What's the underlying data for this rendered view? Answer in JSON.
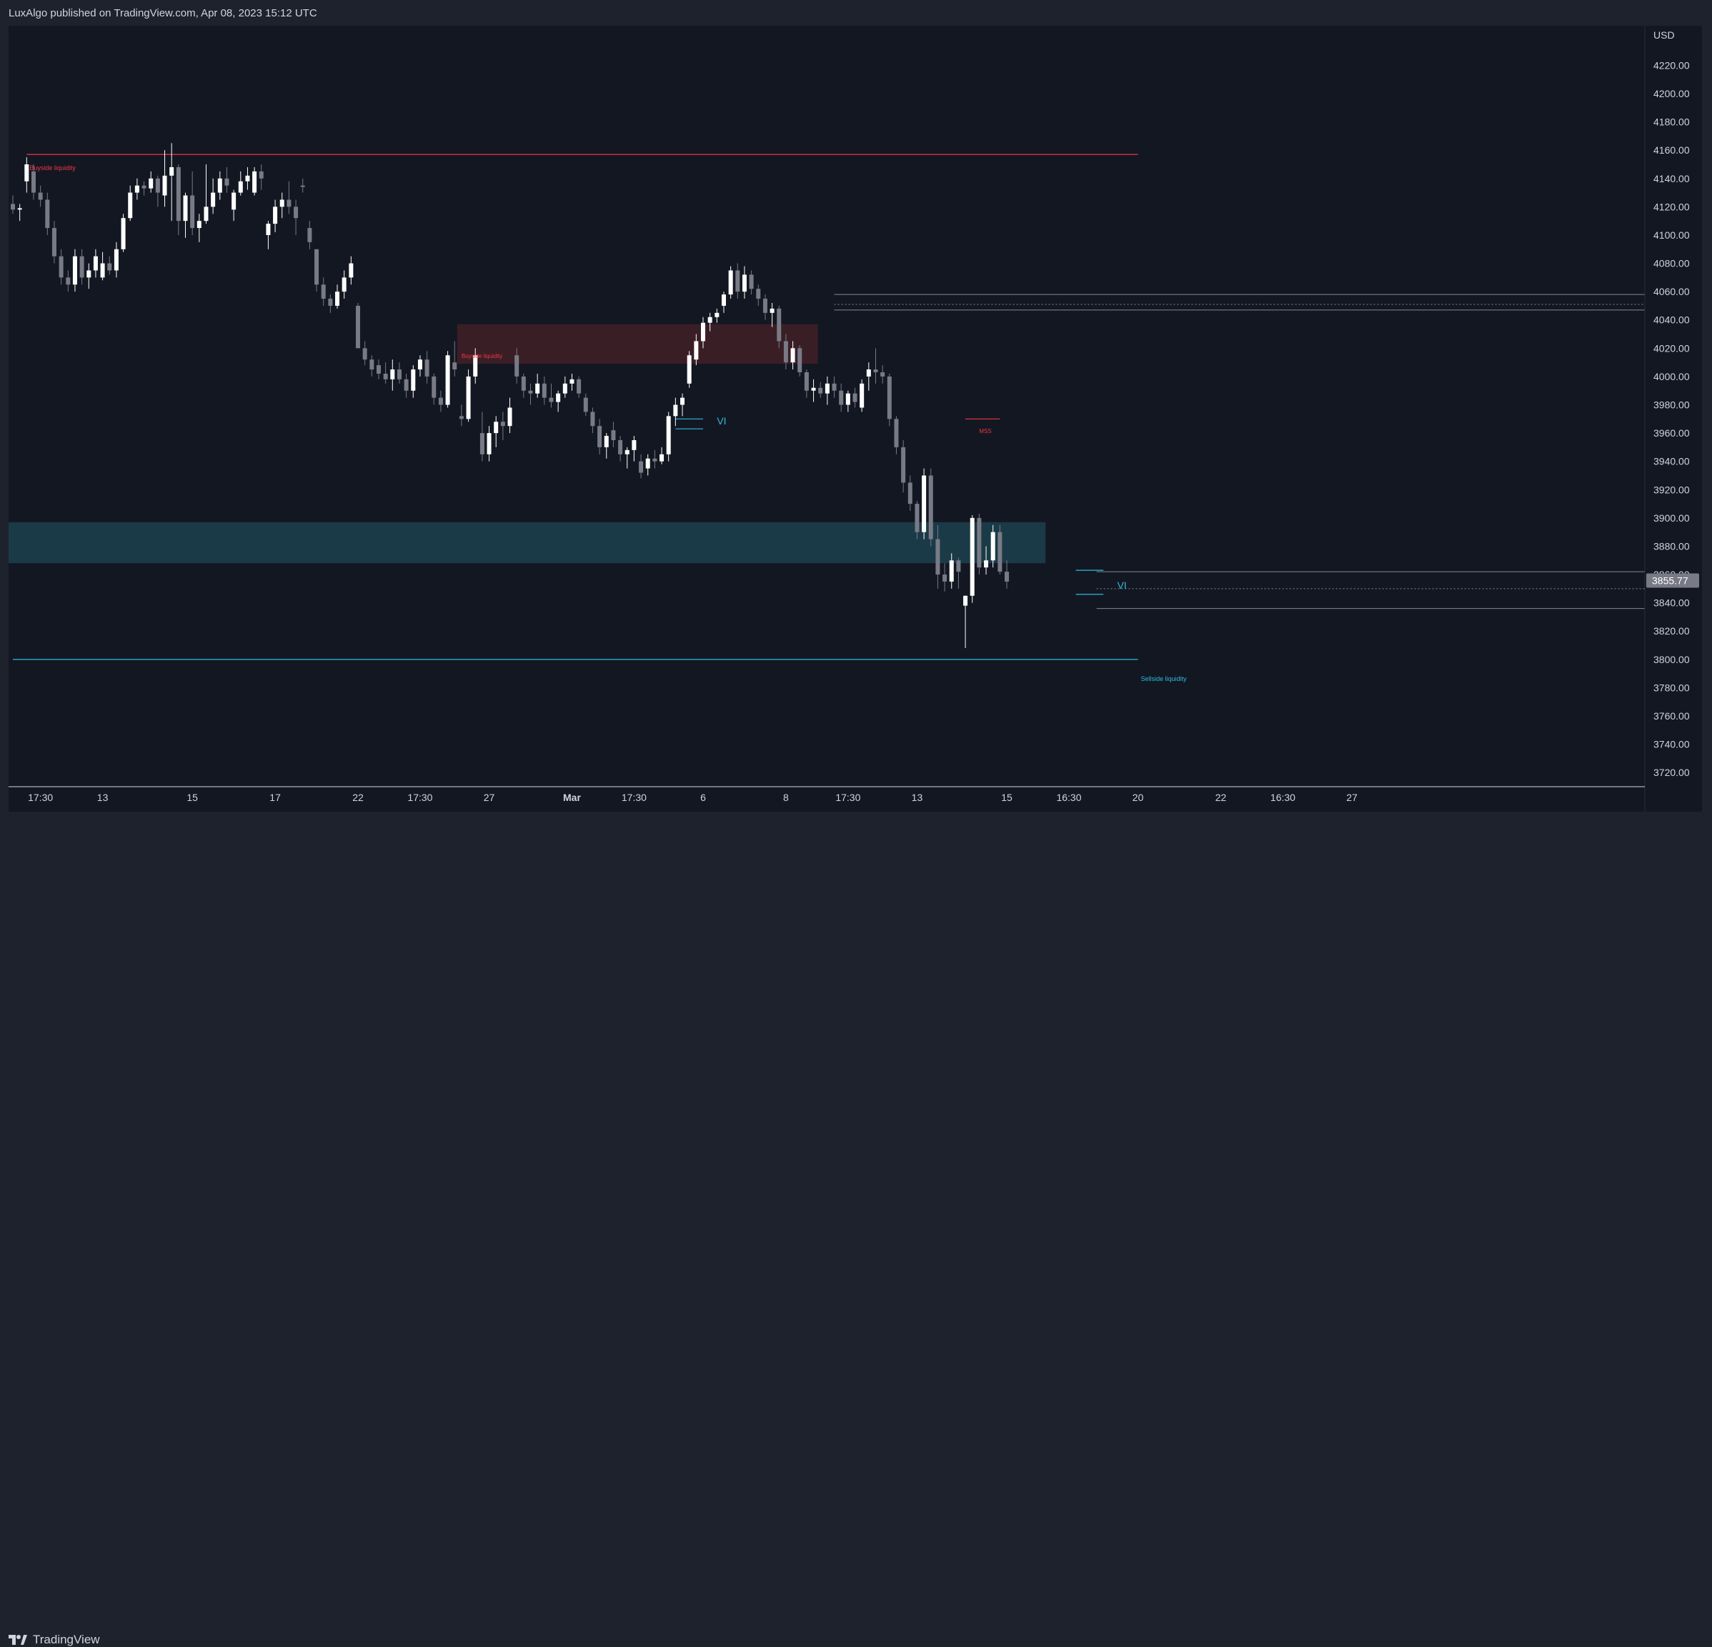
{
  "header": {
    "text": "LuxAlgo published on TradingView.com, Apr 08, 2023 15:12 UTC"
  },
  "footer": {
    "logo_text": "TradingView",
    "logo_icon": "tradingview-logo-icon"
  },
  "colors": {
    "background": "#131722",
    "frame": "#1e222d",
    "bull": "#ffffff",
    "bear": "#787b86",
    "buyside": "#f23645",
    "sellside": "#2ebcdc",
    "axis_text": "#d1d4dc",
    "last_price_bg": "#787b86"
  },
  "chart_data": {
    "type": "candlestick",
    "currency": "USD",
    "ylim": [
      3710,
      4248
    ],
    "y_ticks": [
      4220,
      4200,
      4180,
      4160,
      4140,
      4120,
      4100,
      4080,
      4060,
      4040,
      4020,
      4000,
      3980,
      3960,
      3940,
      3920,
      3900,
      3880,
      3860,
      3840,
      3820,
      3800,
      3780,
      3760,
      3740,
      3720
    ],
    "y_tick_labels": [
      "4220.00",
      "4200.00",
      "4180.00",
      "4160.00",
      "4140.00",
      "4120.00",
      "4100.00",
      "4080.00",
      "4060.00",
      "4040.00",
      "4020.00",
      "4000.00",
      "3980.00",
      "3960.00",
      "3940.00",
      "3920.00",
      "3900.00",
      "3880.00",
      "3860.00",
      "3840.00",
      "3820.00",
      "3800.00",
      "3780.00",
      "3760.00",
      "3740.00",
      "3720.00"
    ],
    "x_ticks": [
      {
        "label": "17:30",
        "bar": 4
      },
      {
        "label": "13",
        "bar": 13
      },
      {
        "label": "15",
        "bar": 26
      },
      {
        "label": "17",
        "bar": 38
      },
      {
        "label": "22",
        "bar": 50
      },
      {
        "label": "17:30",
        "bar": 59
      },
      {
        "label": "27",
        "bar": 69
      },
      {
        "label": "Mar",
        "bar": 81
      },
      {
        "label": "17:30",
        "bar": 90
      },
      {
        "label": "6",
        "bar": 100
      },
      {
        "label": "8",
        "bar": 112
      },
      {
        "label": "17:30",
        "bar": 121
      },
      {
        "label": "13",
        "bar": 131
      },
      {
        "label": "15",
        "bar": 144
      },
      {
        "label": "16:30",
        "bar": 153
      },
      {
        "label": "20",
        "bar": 163
      },
      {
        "label": "22",
        "bar": 175
      },
      {
        "label": "16:30",
        "bar": 184
      },
      {
        "label": "27",
        "bar": 194
      }
    ],
    "candles": [
      [
        4122,
        4128,
        4115,
        4118
      ],
      [
        4118,
        4122,
        4110,
        4119
      ],
      [
        4138,
        4155,
        4130,
        4150
      ],
      [
        4145,
        4150,
        4125,
        4130
      ],
      [
        4130,
        4135,
        4120,
        4125
      ],
      [
        4125,
        4130,
        4100,
        4105
      ],
      [
        4105,
        4110,
        4080,
        4085
      ],
      [
        4085,
        4090,
        4065,
        4070
      ],
      [
        4070,
        4075,
        4060,
        4065
      ],
      [
        4065,
        4090,
        4060,
        4085
      ],
      [
        4085,
        4090,
        4065,
        4070
      ],
      [
        4070,
        4080,
        4062,
        4075
      ],
      [
        4075,
        4090,
        4070,
        4085
      ],
      [
        4070,
        4088,
        4068,
        4080
      ],
      [
        4080,
        4085,
        4072,
        4075
      ],
      [
        4075,
        4095,
        4070,
        4090
      ],
      [
        4090,
        4115,
        4088,
        4112
      ],
      [
        4112,
        4135,
        4110,
        4130
      ],
      [
        4130,
        4140,
        4125,
        4135
      ],
      [
        4135,
        4138,
        4128,
        4133
      ],
      [
        4133,
        4145,
        4130,
        4140
      ],
      [
        4140,
        4142,
        4120,
        4130
      ],
      [
        4128,
        4160,
        4120,
        4142
      ],
      [
        4142,
        4165,
        4110,
        4148
      ],
      [
        4148,
        4150,
        4100,
        4110
      ],
      [
        4110,
        4130,
        4098,
        4128
      ],
      [
        4128,
        4145,
        4100,
        4105
      ],
      [
        4105,
        4115,
        4095,
        4110
      ],
      [
        4110,
        4150,
        4108,
        4120
      ],
      [
        4120,
        4140,
        4115,
        4130
      ],
      [
        4130,
        4145,
        4125,
        4140
      ],
      [
        4140,
        4148,
        4130,
        4135
      ],
      [
        4118,
        4132,
        4110,
        4130
      ],
      [
        4130,
        4145,
        4128,
        4138
      ],
      [
        4138,
        4148,
        4132,
        4142
      ],
      [
        4130,
        4148,
        4128,
        4145
      ],
      [
        4145,
        4150,
        4132,
        4140
      ],
      [
        4100,
        4110,
        4090,
        4108
      ],
      [
        4108,
        4125,
        4102,
        4120
      ],
      [
        4120,
        4130,
        4112,
        4125
      ],
      [
        4125,
        4138,
        4115,
        4120
      ],
      [
        4120,
        4125,
        4100,
        4112
      ],
      [
        4135,
        4140,
        4130,
        4134
      ],
      [
        4105,
        4110,
        4090,
        4095
      ],
      [
        4090,
        4085,
        4060,
        4065
      ],
      [
        4065,
        4070,
        4050,
        4055
      ],
      [
        4055,
        4058,
        4045,
        4050
      ],
      [
        4050,
        4065,
        4048,
        4060
      ],
      [
        4060,
        4075,
        4055,
        4070
      ],
      [
        4070,
        4085,
        4065,
        4080
      ],
      [
        4050,
        4052,
        4025,
        4020
      ],
      [
        4020,
        4025,
        4008,
        4012
      ],
      [
        4012,
        4015,
        4000,
        4005
      ],
      [
        4008,
        4012,
        3998,
        4002
      ],
      [
        4002,
        4010,
        3995,
        3998
      ],
      [
        3998,
        4012,
        3990,
        4005
      ],
      [
        4005,
        4010,
        3995,
        3998
      ],
      [
        3998,
        4002,
        3985,
        3990
      ],
      [
        3990,
        4008,
        3985,
        4005
      ],
      [
        4005,
        4015,
        4000,
        4012
      ],
      [
        4012,
        4018,
        3995,
        4000
      ],
      [
        4000,
        4002,
        3980,
        3985
      ],
      [
        3985,
        3990,
        3975,
        3980
      ],
      [
        3980,
        4018,
        3978,
        4015
      ],
      [
        4010,
        4025,
        4000,
        4005
      ],
      [
        3972,
        3980,
        3965,
        3970
      ],
      [
        3970,
        4005,
        3968,
        4000
      ],
      [
        4000,
        4020,
        3995,
        4015
      ],
      [
        3960,
        3975,
        3940,
        3945
      ],
      [
        3945,
        3965,
        3940,
        3960
      ],
      [
        3960,
        3972,
        3950,
        3968
      ],
      [
        3968,
        3975,
        3955,
        3965
      ],
      [
        3965,
        3985,
        3960,
        3978
      ],
      [
        4015,
        4020,
        3995,
        4000
      ],
      [
        4000,
        4002,
        3985,
        3990
      ],
      [
        3990,
        3995,
        3980,
        3988
      ],
      [
        3988,
        4002,
        3985,
        3995
      ],
      [
        3995,
        4000,
        3980,
        3985
      ],
      [
        3985,
        3995,
        3978,
        3982
      ],
      [
        3982,
        3990,
        3975,
        3988
      ],
      [
        3988,
        4000,
        3985,
        3995
      ],
      [
        3995,
        4002,
        3990,
        3998
      ],
      [
        3998,
        4000,
        3985,
        3988
      ],
      [
        3985,
        3988,
        3972,
        3975
      ],
      [
        3975,
        3978,
        3960,
        3965
      ],
      [
        3965,
        3970,
        3945,
        3950
      ],
      [
        3950,
        3960,
        3942,
        3958
      ],
      [
        3962,
        3968,
        3950,
        3955
      ],
      [
        3955,
        3958,
        3940,
        3945
      ],
      [
        3945,
        3950,
        3935,
        3948
      ],
      [
        3948,
        3958,
        3940,
        3955
      ],
      [
        3940,
        3945,
        3928,
        3932
      ],
      [
        3935,
        3945,
        3930,
        3942
      ],
      [
        3942,
        3948,
        3935,
        3940
      ],
      [
        3940,
        3950,
        3938,
        3945
      ],
      [
        3945,
        3975,
        3940,
        3972
      ],
      [
        3972,
        3985,
        3965,
        3980
      ],
      [
        3980,
        3988,
        3972,
        3985
      ],
      [
        3995,
        4018,
        3992,
        4015
      ],
      [
        4012,
        4030,
        4008,
        4025
      ],
      [
        4025,
        4042,
        4020,
        4038
      ],
      [
        4038,
        4045,
        4032,
        4042
      ],
      [
        4042,
        4048,
        4038,
        4045
      ],
      [
        4050,
        4060,
        4045,
        4058
      ],
      [
        4058,
        4078,
        4055,
        4075
      ],
      [
        4075,
        4080,
        4055,
        4060
      ],
      [
        4060,
        4078,
        4055,
        4072
      ],
      [
        4072,
        4075,
        4058,
        4062
      ],
      [
        4062,
        4065,
        4050,
        4055
      ],
      [
        4055,
        4058,
        4040,
        4045
      ],
      [
        4045,
        4052,
        4035,
        4048
      ],
      [
        4048,
        4050,
        4020,
        4025
      ],
      [
        4025,
        4030,
        4005,
        4010
      ],
      [
        4010,
        4025,
        4005,
        4020
      ],
      [
        4020,
        4022,
        4000,
        4003
      ],
      [
        4003,
        4005,
        3985,
        3990
      ],
      [
        3990,
        3998,
        3982,
        3992
      ],
      [
        3992,
        3996,
        3985,
        3988
      ],
      [
        3988,
        4000,
        3980,
        3995
      ],
      [
        3995,
        4000,
        3985,
        3990
      ],
      [
        3990,
        3995,
        3975,
        3980
      ],
      [
        3980,
        3990,
        3975,
        3988
      ],
      [
        3988,
        3992,
        3978,
        3982
      ],
      [
        3978,
        3998,
        3975,
        3995
      ],
      [
        4000,
        4010,
        3990,
        4005
      ],
      [
        4005,
        4020,
        3995,
        4003
      ],
      [
        4003,
        4008,
        3995,
        4000
      ],
      [
        4000,
        4002,
        3965,
        3970
      ],
      [
        3970,
        3972,
        3945,
        3950
      ],
      [
        3950,
        3955,
        3918,
        3925
      ],
      [
        3925,
        3930,
        3905,
        3910
      ],
      [
        3910,
        3912,
        3885,
        3890
      ],
      [
        3890,
        3935,
        3885,
        3930
      ],
      [
        3930,
        3935,
        3880,
        3885
      ],
      [
        3885,
        3895,
        3850,
        3860
      ],
      [
        3860,
        3868,
        3848,
        3855
      ],
      [
        3855,
        3875,
        3850,
        3870
      ],
      [
        3870,
        3872,
        3850,
        3862
      ],
      [
        3838,
        3845,
        3808,
        3845
      ],
      [
        3845,
        3902,
        3840,
        3900
      ],
      [
        3900,
        3903,
        3860,
        3865
      ],
      [
        3865,
        3880,
        3860,
        3870
      ],
      [
        3870,
        3895,
        3865,
        3890
      ],
      [
        3890,
        3895,
        3860,
        3862
      ],
      [
        3862,
        3870,
        3850,
        3855
      ]
    ],
    "zones": [
      {
        "name": "Sellside liquidity zone",
        "from_bar": 0,
        "to_bar": 149,
        "top": 3897,
        "bottom": 3868,
        "color": "#1b3a47"
      },
      {
        "name": "Buyside liquidity zone",
        "from_bar": 65,
        "to_bar": 116,
        "top": 4037,
        "bottom": 4009,
        "color": "#3a1e26"
      }
    ],
    "levels": [
      {
        "name": "Buyside liquidity",
        "price": 4157,
        "from_bar": 2,
        "to_bar": 163,
        "color": "#f23645",
        "label": "Buyside liquidity",
        "label_bar": 2
      },
      {
        "name": "Sellside liquidity",
        "price": 3800,
        "from_bar": 0,
        "to_bar": 163,
        "color": "#2ebcdc",
        "label": "Sellside liquidity",
        "label_bar": 163
      }
    ],
    "annotations": [
      {
        "text": "Buyside liquidity",
        "bar": 65,
        "price": 4013,
        "color": "#f23645"
      },
      {
        "text": "VI",
        "bar": 102,
        "price": 3966,
        "color": "#2ebcdc"
      },
      {
        "text": "MSS",
        "bar": 140,
        "price": 3960,
        "color": "#f23645"
      },
      {
        "text": "VI",
        "bar": 160,
        "price": 3850,
        "color": "#2ebcdc"
      }
    ],
    "vi_lines": [
      {
        "from_bar": 96,
        "to_bar": 100,
        "price": 3970,
        "color": "#2ebcdc"
      },
      {
        "from_bar": 96,
        "to_bar": 100,
        "price": 3963,
        "color": "#2ebcdc"
      },
      {
        "from_bar": 154,
        "to_bar": 158,
        "price": 3863,
        "color": "#2ebcdc"
      },
      {
        "from_bar": 154,
        "to_bar": 158,
        "price": 3846,
        "color": "#2ebcdc"
      }
    ],
    "mss_line": {
      "from_bar": 138,
      "to_bar": 143,
      "price": 3970,
      "color": "#f23645"
    },
    "box_levels": [
      {
        "price": 4058,
        "from_bar": 119,
        "color": "#868993"
      },
      {
        "price": 4051,
        "from_bar": 119,
        "color": "#868993",
        "dashed": true
      },
      {
        "price": 4047,
        "from_bar": 119,
        "color": "#868993"
      },
      {
        "price": 3862,
        "from_bar": 157,
        "color": "#868993"
      },
      {
        "price": 3850,
        "from_bar": 157,
        "color": "#868993",
        "dashed": true
      },
      {
        "price": 3836,
        "from_bar": 157,
        "color": "#868993"
      }
    ],
    "last_price": {
      "value": 3855.77,
      "label": "3855.77"
    }
  }
}
